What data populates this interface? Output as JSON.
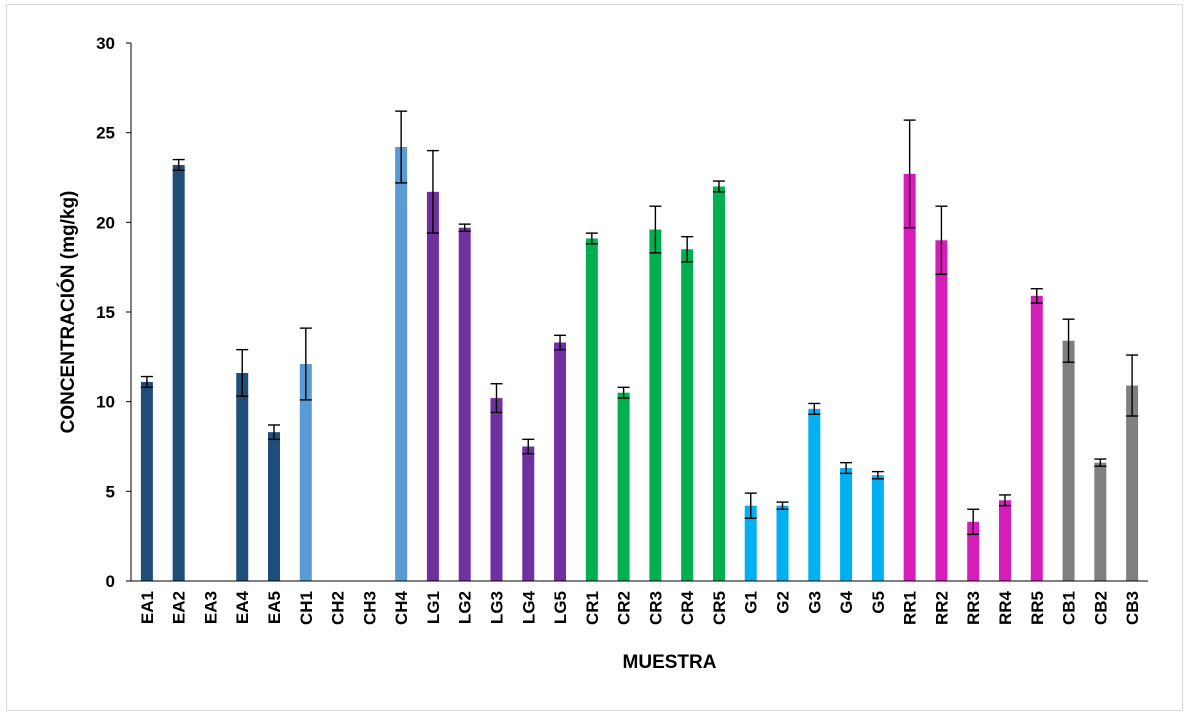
{
  "chart_data": {
    "type": "bar",
    "title": "",
    "xlabel": "MUESTRA",
    "ylabel": "CONCENTRACIÓN (mg/kg)",
    "ylim": [
      0,
      30
    ],
    "yticks": [
      0,
      5,
      10,
      15,
      20,
      25,
      30
    ],
    "grid": false,
    "legend": "none",
    "error_bars": true,
    "categories": [
      "EA1",
      "EA2",
      "EA3",
      "EA4",
      "EA5",
      "CH1",
      "CH2",
      "CH3",
      "CH4",
      "LG1",
      "LG2",
      "LG3",
      "LG4",
      "LG5",
      "CR1",
      "CR2",
      "CR3",
      "CR4",
      "CR5",
      "G1",
      "G2",
      "G3",
      "G4",
      "G5",
      "RR1",
      "RR2",
      "RR3",
      "RR4",
      "RR5",
      "CB1",
      "CB2",
      "CB3"
    ],
    "values": [
      11.1,
      23.2,
      0,
      11.6,
      8.3,
      12.1,
      0,
      0,
      24.2,
      21.7,
      19.7,
      10.2,
      7.5,
      13.3,
      19.1,
      10.5,
      19.6,
      18.5,
      22.0,
      4.2,
      4.2,
      9.6,
      6.3,
      5.9,
      22.7,
      19.0,
      3.3,
      4.5,
      15.9,
      13.4,
      6.6,
      10.9
    ],
    "errors": [
      0.3,
      0.3,
      0,
      1.3,
      0.4,
      2.0,
      0,
      0,
      2.0,
      2.3,
      0.2,
      0.8,
      0.4,
      0.4,
      0.3,
      0.3,
      1.3,
      0.7,
      0.3,
      0.7,
      0.2,
      0.3,
      0.3,
      0.2,
      3.0,
      1.9,
      0.7,
      0.3,
      0.4,
      1.2,
      0.2,
      1.7
    ],
    "colors": [
      "#1f4e79",
      "#1f4e79",
      "#1f4e79",
      "#1f4e79",
      "#1f4e79",
      "#5b9bd5",
      "#5b9bd5",
      "#5b9bd5",
      "#5b9bd5",
      "#7030a0",
      "#7030a0",
      "#7030a0",
      "#7030a0",
      "#7030a0",
      "#00b050",
      "#00b050",
      "#00b050",
      "#00b050",
      "#00b050",
      "#00b0f0",
      "#00b0f0",
      "#00b0f0",
      "#00b0f0",
      "#00b0f0",
      "#d51eb9",
      "#d51eb9",
      "#d51eb9",
      "#d51eb9",
      "#d51eb9",
      "#808080",
      "#808080",
      "#808080"
    ]
  }
}
